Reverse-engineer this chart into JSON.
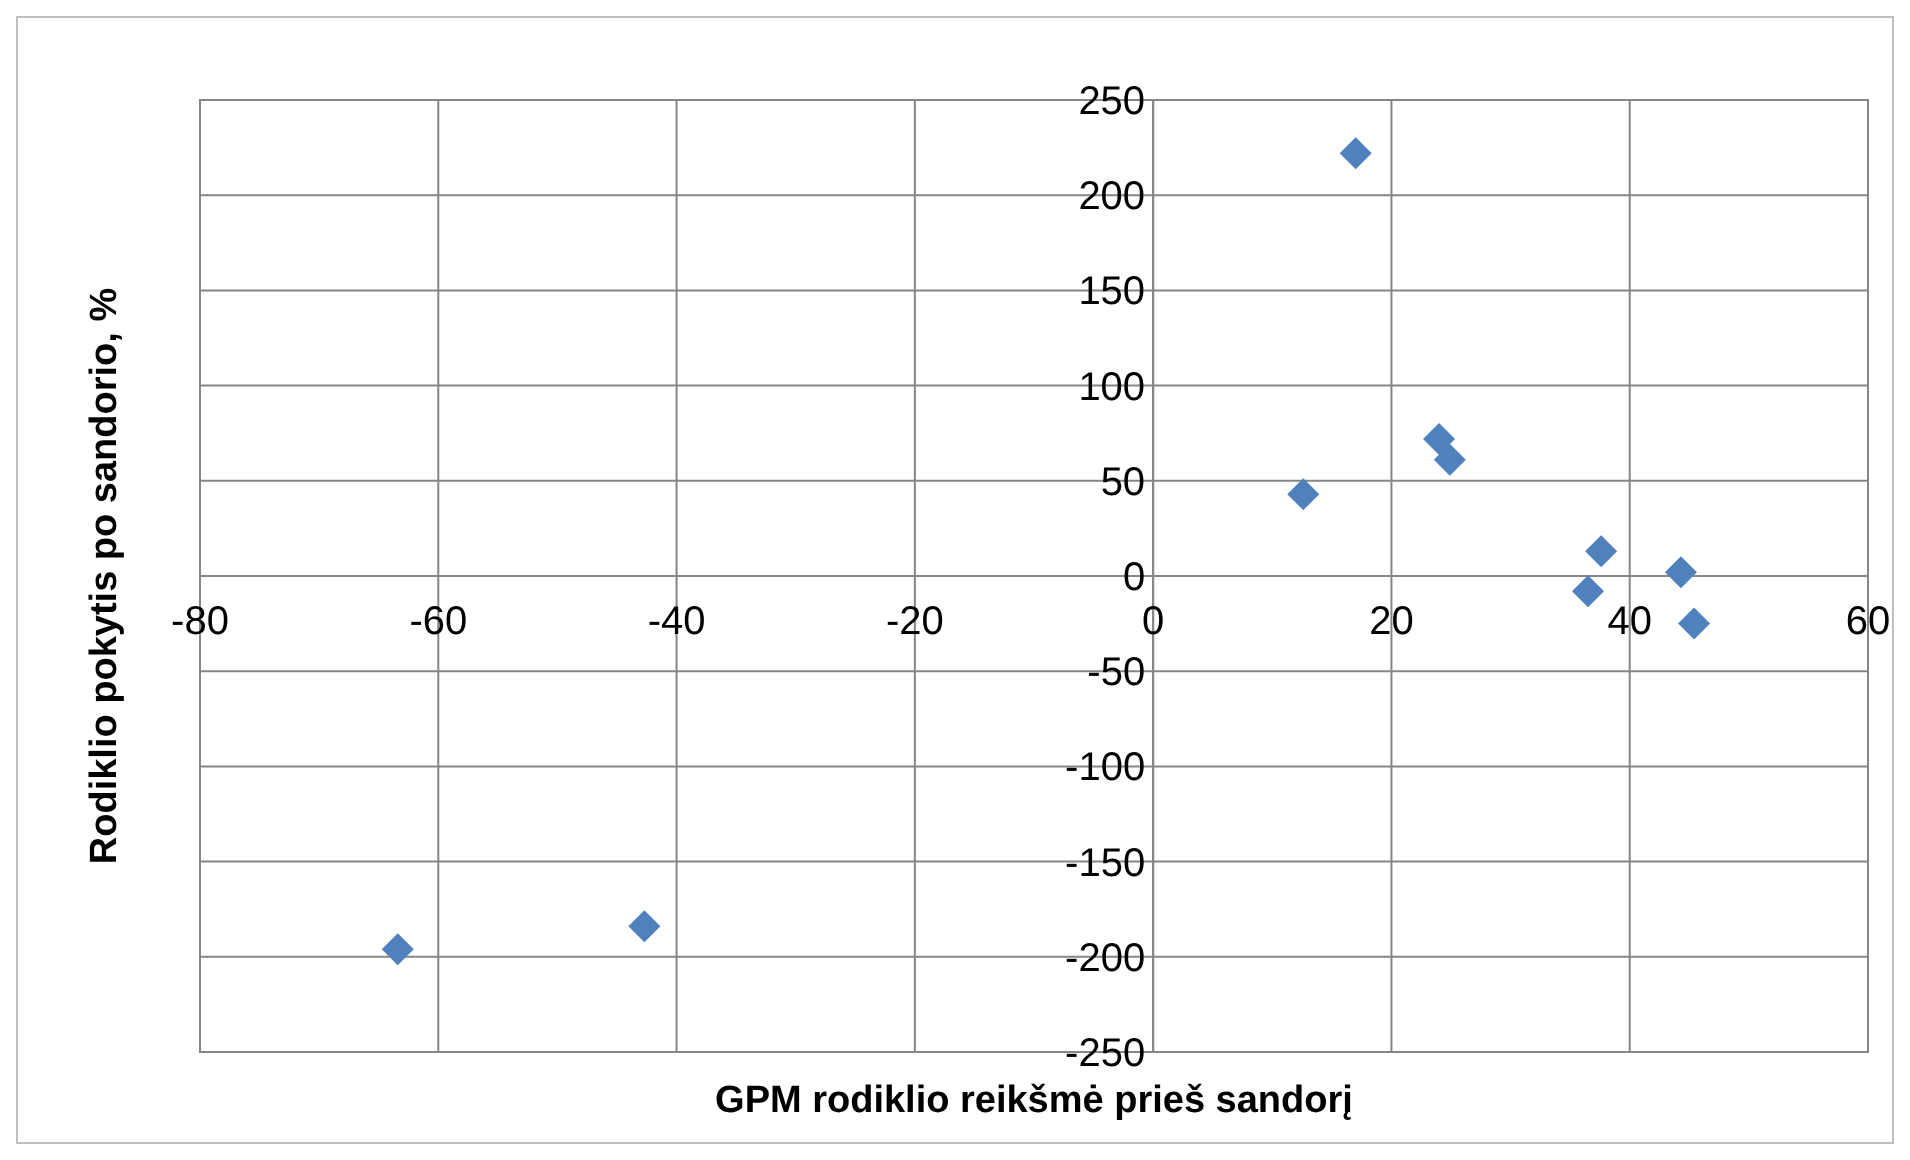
{
  "chart_data": {
    "type": "scatter",
    "xlabel": "GPM rodiklio reikšmė prieš sandorį",
    "ylabel": "Rodiklio pokytis po sandorio, %",
    "x": [
      -63.4,
      -42.7,
      12.6,
      17.0,
      24.0,
      24.9,
      37.6,
      36.5,
      44.3,
      45.4
    ],
    "series": [
      {
        "color": "#4f81bd",
        "values": [
          -196,
          -184,
          43,
          222,
          72,
          61,
          13,
          -8,
          2,
          -25
        ]
      }
    ],
    "xlim": [
      -80,
      60
    ],
    "xticks": [
      -80,
      -60,
      -40,
      -20,
      0,
      20,
      40,
      60
    ],
    "ylim": [
      -250,
      250
    ],
    "yticks": [
      -250,
      -200,
      -150,
      -100,
      -50,
      0,
      50,
      100,
      150,
      200,
      250
    ],
    "grid": true,
    "marker": "diamond"
  }
}
